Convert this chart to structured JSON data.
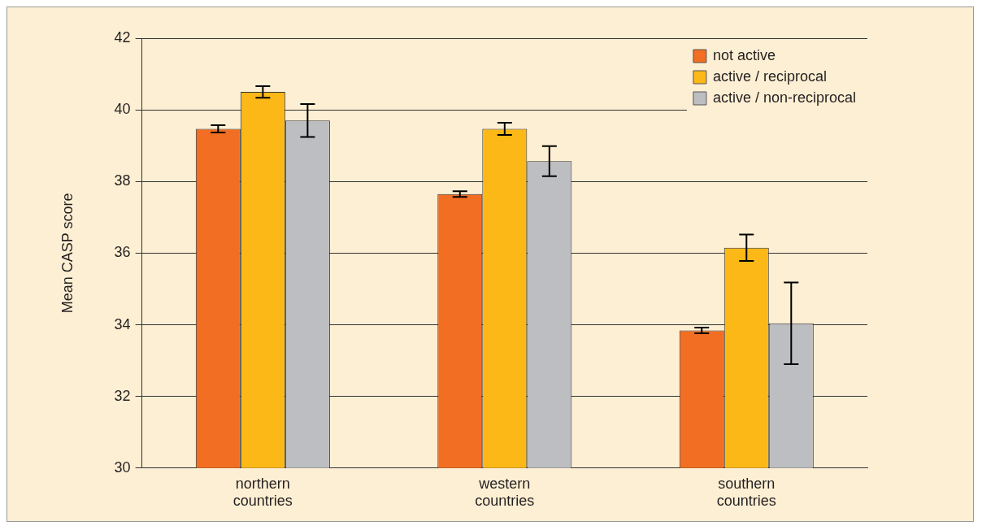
{
  "chart_data": {
    "type": "bar",
    "ylabel": "Mean CASP score",
    "categories": [
      "northern countries",
      "western countries",
      "southern countries"
    ],
    "series": [
      {
        "name": "not active",
        "color": "#f26e22",
        "values": [
          39.47,
          37.65,
          33.84
        ],
        "errors": [
          0.1,
          0.08,
          0.08
        ]
      },
      {
        "name": "active / reciprocal",
        "color": "#fcb817",
        "values": [
          40.5,
          39.47,
          36.15
        ],
        "errors": [
          0.16,
          0.17,
          0.37
        ]
      },
      {
        "name": "active / non-reciprocal",
        "color": "#bdbec2",
        "values": [
          39.7,
          38.57,
          34.04
        ],
        "errors": [
          0.46,
          0.42,
          1.14
        ]
      }
    ],
    "ylim": [
      30,
      42
    ],
    "yticks": [
      30,
      32,
      34,
      36,
      38,
      40,
      42
    ],
    "grid": "y",
    "legend": "top right"
  }
}
